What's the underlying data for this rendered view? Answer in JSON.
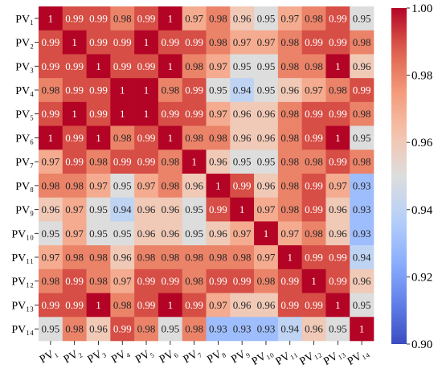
{
  "chart_data": {
    "type": "heatmap",
    "title": "",
    "xlabel": "",
    "ylabel": "",
    "row_labels": [
      "PV₁",
      "PV₂",
      "PV₃",
      "PV₄",
      "PV₅",
      "PV₆",
      "PV₇",
      "PV₈",
      "PV₉",
      "PV₁₀",
      "PV₁₁",
      "PV₁₂",
      "PV₁₃",
      "PV₁₄"
    ],
    "col_labels": [
      "PV₁",
      "PV₂",
      "PV₃",
      "PV₄",
      "PV₅",
      "PV₆",
      "PV₇",
      "PV₈",
      "PV₉",
      "PV₁₀",
      "PV₁₁",
      "PV₁₂",
      "PV₁₃",
      "PV₁₄"
    ],
    "values": [
      [
        1,
        0.99,
        0.99,
        0.98,
        0.99,
        1,
        0.97,
        0.98,
        0.96,
        0.95,
        0.97,
        0.98,
        0.99,
        0.95
      ],
      [
        0.99,
        1,
        0.99,
        0.99,
        1,
        0.99,
        0.99,
        0.98,
        0.97,
        0.97,
        0.98,
        0.99,
        0.99,
        0.98
      ],
      [
        0.99,
        0.99,
        1,
        0.99,
        0.99,
        1,
        0.98,
        0.97,
        0.95,
        0.95,
        0.98,
        0.98,
        1,
        0.96
      ],
      [
        0.98,
        0.99,
        0.99,
        1,
        1,
        0.98,
        0.99,
        0.95,
        0.94,
        0.95,
        0.96,
        0.97,
        0.98,
        0.99
      ],
      [
        0.99,
        1,
        0.99,
        1,
        1,
        0.99,
        0.99,
        0.97,
        0.96,
        0.96,
        0.98,
        0.99,
        0.99,
        0.98
      ],
      [
        1,
        0.99,
        1,
        0.98,
        0.99,
        1,
        0.98,
        0.98,
        0.96,
        0.96,
        0.98,
        0.99,
        1,
        0.95
      ],
      [
        0.97,
        0.99,
        0.98,
        0.99,
        0.99,
        0.98,
        1,
        0.96,
        0.95,
        0.95,
        0.98,
        0.98,
        0.99,
        0.98
      ],
      [
        0.98,
        0.98,
        0.97,
        0.95,
        0.97,
        0.98,
        0.96,
        1,
        0.99,
        0.96,
        0.98,
        0.99,
        0.97,
        0.93
      ],
      [
        0.96,
        0.97,
        0.95,
        0.94,
        0.96,
        0.96,
        0.95,
        0.99,
        1,
        0.97,
        0.98,
        0.99,
        0.96,
        0.93
      ],
      [
        0.95,
        0.97,
        0.95,
        0.95,
        0.96,
        0.96,
        0.95,
        0.96,
        0.97,
        1,
        0.97,
        0.98,
        0.96,
        0.93
      ],
      [
        0.97,
        0.98,
        0.98,
        0.96,
        0.98,
        0.98,
        0.98,
        0.98,
        0.98,
        0.97,
        1,
        0.99,
        0.99,
        0.94
      ],
      [
        0.98,
        0.99,
        0.98,
        0.97,
        0.99,
        0.99,
        0.98,
        0.99,
        0.99,
        0.98,
        0.99,
        1,
        0.99,
        0.96
      ],
      [
        0.99,
        0.99,
        1,
        0.98,
        0.99,
        1,
        0.99,
        0.97,
        0.96,
        0.96,
        0.99,
        0.99,
        1,
        0.95
      ],
      [
        0.95,
        0.98,
        0.96,
        0.99,
        0.98,
        0.95,
        0.98,
        0.93,
        0.93,
        0.93,
        0.94,
        0.96,
        0.95,
        1
      ]
    ],
    "value_labels": [
      [
        "1",
        "0.99",
        "0.99",
        "0.98",
        "0.99",
        "1",
        "0.97",
        "0.98",
        "0.96",
        "0.95",
        "0.97",
        "0.98",
        "0.99",
        "0.95"
      ],
      [
        "0.99",
        "1",
        "0.99",
        "0.99",
        "1",
        "0.99",
        "0.99",
        "0.98",
        "0.97",
        "0.97",
        "0.98",
        "0.99",
        "0.99",
        "0.98"
      ],
      [
        "0.99",
        "0.99",
        "1",
        "0.99",
        "0.99",
        "1",
        "0.98",
        "0.97",
        "0.95",
        "0.95",
        "0.98",
        "0.98",
        "1",
        "0.96"
      ],
      [
        "0.98",
        "0.99",
        "0.99",
        "1",
        "1",
        "0.98",
        "0.99",
        "0.95",
        "0.94",
        "0.95",
        "0.96",
        "0.97",
        "0.98",
        "0.99"
      ],
      [
        "0.99",
        "1",
        "0.99",
        "1",
        "1",
        "0.99",
        "0.99",
        "0.97",
        "0.96",
        "0.96",
        "0.98",
        "0.99",
        "0.99",
        "0.98"
      ],
      [
        "1",
        "0.99",
        "1",
        "0.98",
        "0.99",
        "1",
        "0.98",
        "0.98",
        "0.96",
        "0.96",
        "0.98",
        "0.99",
        "1",
        "0.95"
      ],
      [
        "0.97",
        "0.99",
        "0.98",
        "0.99",
        "0.99",
        "0.98",
        "1",
        "0.96",
        "0.95",
        "0.95",
        "0.98",
        "0.98",
        "0.99",
        "0.98"
      ],
      [
        "0.98",
        "0.98",
        "0.97",
        "0.95",
        "0.97",
        "0.98",
        "0.96",
        "1",
        "0.99",
        "0.96",
        "0.98",
        "0.99",
        "0.97",
        "0.93"
      ],
      [
        "0.96",
        "0.97",
        "0.95",
        "0.94",
        "0.96",
        "0.96",
        "0.95",
        "0.99",
        "1",
        "0.97",
        "0.98",
        "0.99",
        "0.96",
        "0.93"
      ],
      [
        "0.95",
        "0.97",
        "0.95",
        "0.95",
        "0.96",
        "0.96",
        "0.95",
        "0.96",
        "0.97",
        "1",
        "0.97",
        "0.98",
        "0.96",
        "0.93"
      ],
      [
        "0.97",
        "0.98",
        "0.98",
        "0.96",
        "0.98",
        "0.98",
        "0.98",
        "0.98",
        "0.98",
        "0.97",
        "1",
        "0.99",
        "0.99",
        "0.94"
      ],
      [
        "0.98",
        "0.99",
        "0.98",
        "0.97",
        "0.99",
        "0.99",
        "0.98",
        "0.99",
        "0.99",
        "0.98",
        "0.99",
        "1",
        "0.99",
        "0.96"
      ],
      [
        "0.99",
        "0.99",
        "1",
        "0.98",
        "0.99",
        "1",
        "0.99",
        "0.97",
        "0.96",
        "0.96",
        "0.99",
        "0.99",
        "1",
        "0.95"
      ],
      [
        "0.95",
        "0.98",
        "0.96",
        "0.99",
        "0.98",
        "0.95",
        "0.98",
        "0.93",
        "0.93",
        "0.93",
        "0.94",
        "0.96",
        "0.95",
        "1"
      ]
    ],
    "colorbar": {
      "min": 0.9,
      "max": 1.0,
      "ticks": [
        0.9,
        0.92,
        0.94,
        0.96,
        0.98,
        1.0
      ],
      "tick_labels": [
        "0.90",
        "0.92",
        "0.94",
        "0.96",
        "0.98",
        "1.00"
      ],
      "colormap": "coolwarm",
      "low_color": "#3b4cc0",
      "mid_color": "#dddddd",
      "high_color": "#b40426"
    },
    "grid": false
  }
}
